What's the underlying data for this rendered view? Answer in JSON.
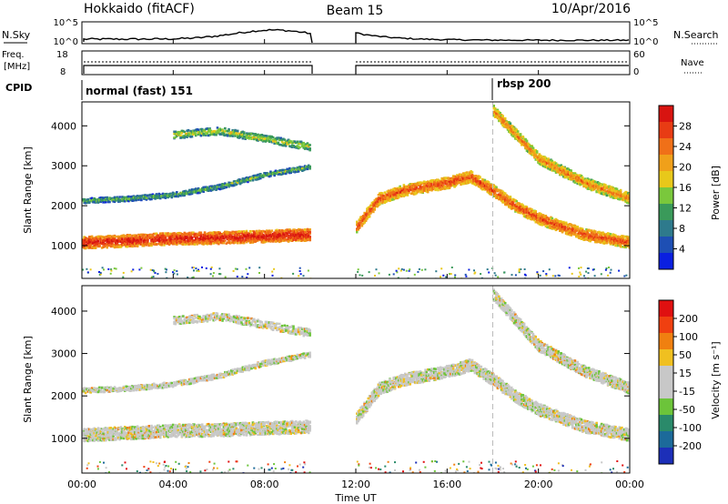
{
  "header": {
    "radar": "Hokkaido (fitACF)",
    "beam": "Beam 15",
    "date": "10/Apr/2016"
  },
  "top_panels": {
    "nsky_label": "N.Sky",
    "nsky_ticks": [
      "10^5",
      "10^0"
    ],
    "nsearch_label": "N.Search",
    "nsearch_ticks": [
      "10^5",
      "10^0"
    ],
    "freq_label_1": "Freq.",
    "freq_label_2": "[MHz]",
    "freq_ticks": [
      "18",
      "8"
    ],
    "nave_label": "Nave",
    "nave_ticks": [
      "60",
      "0"
    ],
    "cpid_label": "CPID",
    "cpid_modes": [
      {
        "name": "normal (fast) 151",
        "start_hr": 0
      },
      {
        "name": "rbsp 200",
        "start_hr": 18
      }
    ]
  },
  "chart_data": {
    "type": "heatmap",
    "x_ticks": [
      "00:00",
      "04:00",
      "08:00",
      "12:00",
      "16:00",
      "20:00",
      "00:00"
    ],
    "x_range_hr": [
      0,
      24
    ],
    "xlabel": "Time UT",
    "data_gap_hr": [
      10,
      12
    ],
    "panels": [
      {
        "name": "power",
        "ylabel": "Slant Range [km]",
        "y_ticks": [
          "4000",
          "3000",
          "2000",
          "1000"
        ],
        "y_range_km": [
          180,
          4600
        ],
        "colorbar_label": "Power [dB]",
        "colorbar_ticks": [
          "28",
          "24",
          "20",
          "16",
          "12",
          "8",
          "4"
        ],
        "colors": [
          "#0a1fe0",
          "#1e4fb4",
          "#2e7a8c",
          "#3a9a5a",
          "#7ac83c",
          "#e8c81a",
          "#f0a01a",
          "#f07018",
          "#e83c14",
          "#d81410"
        ]
      },
      {
        "name": "velocity",
        "ylabel": "Slant Range [km]",
        "y_ticks": [
          "4000",
          "3000",
          "2000",
          "1000"
        ],
        "y_range_km": [
          180,
          4600
        ],
        "colorbar_label": "Velocity [m s⁻¹]",
        "colorbar_ticks": [
          "200",
          "100",
          "50",
          "15",
          "-15",
          "-50",
          "-100",
          "-200"
        ],
        "colors": [
          "#1c2fb8",
          "#1c6a9a",
          "#2a8a6a",
          "#6cc43a",
          "#c8c8c8",
          "#c8c8c8",
          "#f0c020",
          "#f08010",
          "#f04010",
          "#e01010"
        ]
      }
    ],
    "echo_bands": [
      {
        "label": "main band",
        "t": [
          0,
          2,
          4,
          6,
          8,
          10
        ],
        "r": [
          1100,
          1150,
          1200,
          1220,
          1260,
          1300
        ],
        "width_km": 300,
        "power_level": 9
      },
      {
        "label": "upper band",
        "t": [
          0,
          2,
          4,
          6,
          8,
          10
        ],
        "r": [
          2150,
          2200,
          2300,
          2500,
          2800,
          3000
        ],
        "width_km": 120,
        "power_level": 4
      },
      {
        "label": "high band",
        "t": [
          4,
          6,
          8,
          10
        ],
        "r": [
          3800,
          3900,
          3700,
          3500
        ],
        "width_km": 180,
        "power_level": 5
      },
      {
        "label": "afternoon band",
        "t": [
          12,
          13,
          14,
          15,
          16,
          17,
          18,
          19,
          20,
          22,
          24
        ],
        "r": [
          1500,
          2200,
          2400,
          2500,
          2600,
          2750,
          2400,
          2000,
          1700,
          1300,
          1100
        ],
        "width_km": 280,
        "power_level": 8
      },
      {
        "label": "descending band",
        "t": [
          18,
          19,
          20,
          22,
          24
        ],
        "r": [
          4400,
          3800,
          3200,
          2600,
          2200
        ],
        "width_km": 260,
        "power_level": 7
      }
    ]
  }
}
